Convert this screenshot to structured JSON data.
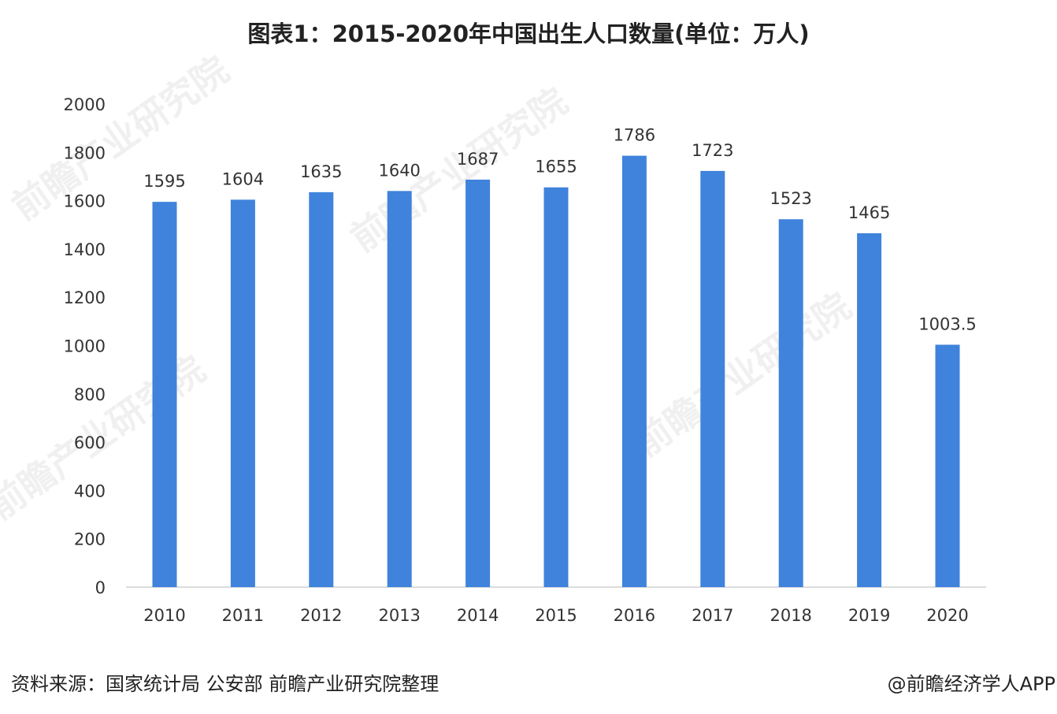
{
  "title": "图表1：2015-2020年中国出生人口数量(单位：万人)",
  "source": "资料来源：国家统计局 公安部 前瞻产业研究院整理",
  "credit": "@前瞻经济学人APP",
  "watermark": "前瞻产业研究院",
  "colors": {
    "bar": "#3f83dc",
    "axis": "#d0d0d0",
    "text": "#333333"
  },
  "chart_data": {
    "type": "bar",
    "title": "图表1：2015-2020年中国出生人口数量(单位：万人)",
    "categories": [
      "2010",
      "2011",
      "2012",
      "2013",
      "2014",
      "2015",
      "2016",
      "2017",
      "2018",
      "2019",
      "2020"
    ],
    "values": [
      1595,
      1604,
      1635,
      1640,
      1687,
      1655,
      1786,
      1723,
      1523,
      1465,
      1003.5
    ],
    "data_labels": [
      "1595",
      "1604",
      "1635",
      "1640",
      "1687",
      "1655",
      "1786",
      "1723",
      "1523",
      "1465",
      "1003.5"
    ],
    "yticks": [
      "0",
      "200",
      "400",
      "600",
      "800",
      "1000",
      "1200",
      "1400",
      "1600",
      "1800",
      "2000"
    ],
    "ylim": [
      0,
      2000
    ],
    "grid": false,
    "legend": "none"
  }
}
